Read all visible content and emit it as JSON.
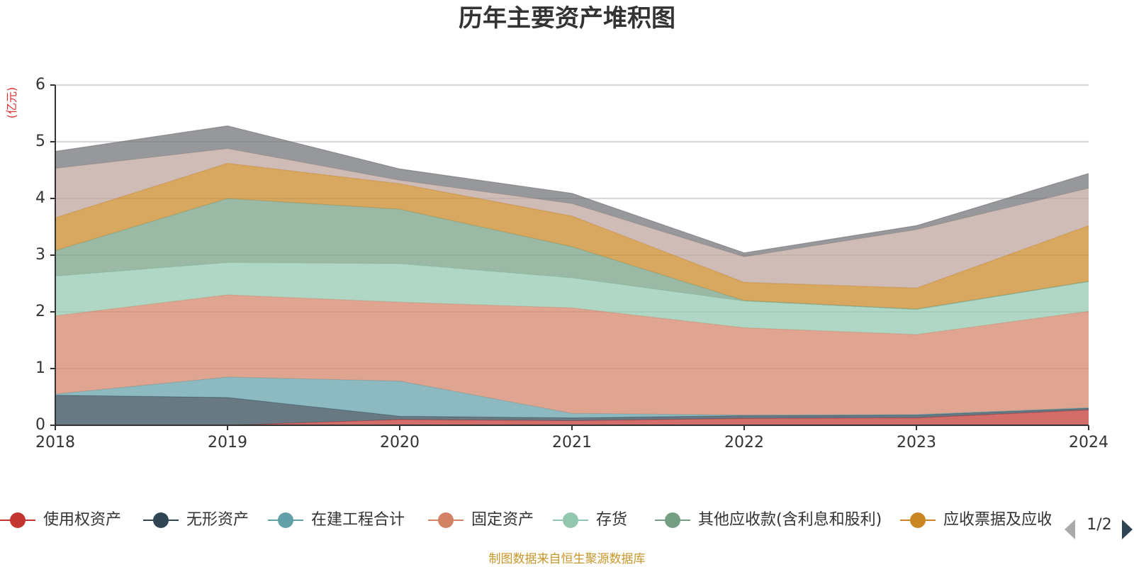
{
  "chart_data": {
    "type": "area",
    "stacked": true,
    "title": "历年主要资产堆积图",
    "unit_label": "(亿元)",
    "x": [
      "2018",
      "2019",
      "2020",
      "2021",
      "2022",
      "2023",
      "2024"
    ],
    "ylim": [
      0,
      6
    ],
    "yticks": [
      "0",
      "1",
      "2",
      "3",
      "4",
      "5",
      "6"
    ],
    "grid": true,
    "legend_position": "bottom",
    "series": [
      {
        "name": "使用权资产",
        "color": "#c23531",
        "line_color": "#c23531",
        "values": [
          0.0,
          0.0,
          0.1,
          0.08,
          0.12,
          0.13,
          0.27
        ]
      },
      {
        "name": "无形资产",
        "color": "#2f4554",
        "line_color": "#2f4554",
        "values": [
          0.53,
          0.49,
          0.06,
          0.05,
          0.05,
          0.05,
          0.03
        ]
      },
      {
        "name": "在建工程合计",
        "color": "#61a0a8",
        "line_color": "#61a0a8",
        "values": [
          0.02,
          0.36,
          0.62,
          0.08,
          0.01,
          0.01,
          0.01
        ]
      },
      {
        "name": "固定资产",
        "color": "#d48265",
        "line_color": "#d48265",
        "values": [
          1.38,
          1.45,
          1.39,
          1.86,
          1.54,
          1.41,
          1.7
        ]
      },
      {
        "name": "存货",
        "color": "#91c7ae",
        "line_color": "#91c7ae",
        "values": [
          0.7,
          0.57,
          0.68,
          0.53,
          0.47,
          0.44,
          0.52
        ]
      },
      {
        "name": "其他应收款(含利息和股利)",
        "color": "#749f83",
        "line_color": "#749f83",
        "values": [
          0.45,
          1.13,
          0.96,
          0.55,
          0.01,
          0.01,
          0.01
        ]
      },
      {
        "name": "应收票据及应收账款",
        "color": "#ca8622",
        "line_color": "#ca8622",
        "values": [
          0.58,
          0.62,
          0.45,
          0.54,
          0.32,
          0.37,
          0.98
        ]
      },
      {
        "values": [
          0.87,
          0.26,
          0.06,
          0.22,
          0.45,
          1.03,
          0.66
        ],
        "color": "#bda29a",
        "line_color": "#bda29a"
      },
      {
        "values": [
          0.3,
          0.4,
          0.2,
          0.18,
          0.07,
          0.07,
          0.26
        ],
        "color": "#6e7074",
        "line_color": "#6e7074"
      }
    ],
    "legend_visible_count": 7,
    "legend_truncated_last_label": "应收票据及应收",
    "pager": {
      "text": "1/2"
    },
    "source_note": "制图数据来自恒生聚源数据库",
    "source_color": "#c8962a",
    "unit_color": "#e03030"
  }
}
